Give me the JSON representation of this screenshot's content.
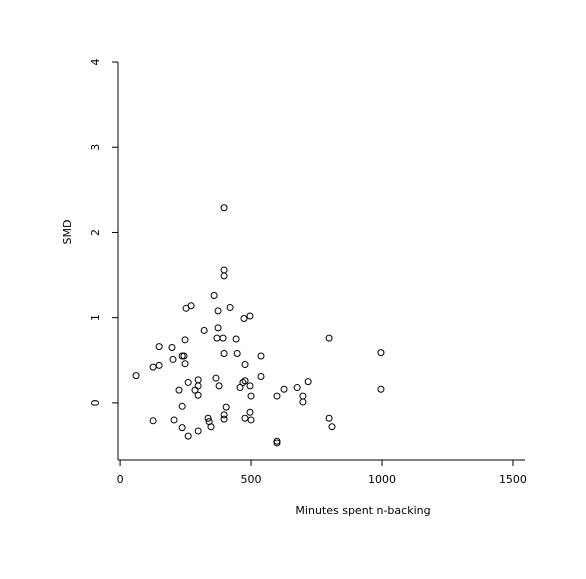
{
  "chart_data": {
    "type": "scatter",
    "xlabel": "Minutes spent n-backing",
    "ylabel": "SMD",
    "x": [
      61,
      126,
      149,
      149,
      126,
      198,
      202,
      206,
      225,
      237,
      244,
      248,
      248,
      252,
      271,
      237,
      237,
      260,
      260,
      286,
      298,
      298,
      298,
      298,
      321,
      336,
      340,
      347,
      359,
      366,
      370,
      374,
      374,
      378,
      393,
      397,
      397,
      397,
      397,
      397,
      397,
      405,
      420,
      443,
      447,
      458,
      469,
      473,
      477,
      477,
      477,
      496,
      496,
      500,
      496,
      500,
      538,
      538,
      599,
      599,
      599,
      626,
      676,
      698,
      698,
      718,
      798,
      798,
      809,
      996,
      996
    ],
    "values": [
      0.32,
      0.42,
      0.66,
      0.44,
      -0.21,
      0.65,
      0.51,
      -0.2,
      0.15,
      0.55,
      0.55,
      0.46,
      0.74,
      1.11,
      1.14,
      -0.04,
      -0.29,
      0.24,
      -0.39,
      0.15,
      0.27,
      0.2,
      0.09,
      -0.33,
      0.85,
      -0.18,
      -0.22,
      -0.28,
      1.26,
      0.29,
      0.76,
      1.08,
      0.88,
      0.2,
      0.76,
      0.58,
      2.29,
      1.56,
      1.49,
      -0.14,
      -0.19,
      -0.05,
      1.12,
      0.75,
      0.58,
      0.18,
      0.24,
      0.99,
      0.45,
      -0.18,
      0.26,
      1.02,
      0.2,
      0.08,
      -0.11,
      -0.2,
      0.55,
      0.31,
      0.08,
      -0.45,
      -0.47,
      0.16,
      0.18,
      0.08,
      0.01,
      0.25,
      0.76,
      -0.18,
      -0.28,
      0.59,
      0.16
    ],
    "color": "#000000",
    "xlim": [
      -8,
      1546
    ],
    "xticks": [
      0,
      500,
      1000,
      1500
    ],
    "ylim": [
      -0.67,
      4
    ],
    "yticks": [
      0,
      1,
      2,
      3,
      4
    ]
  }
}
